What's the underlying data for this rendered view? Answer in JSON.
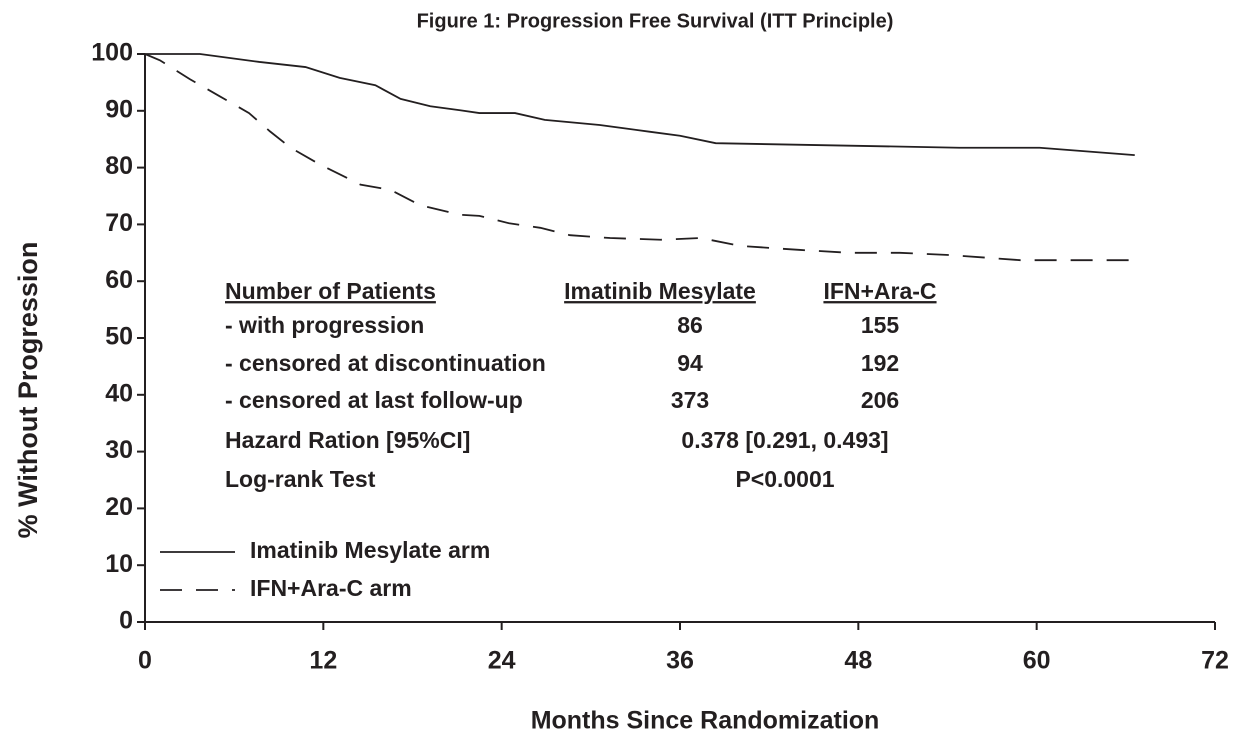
{
  "chart_data": {
    "type": "line",
    "title": "Figure 1: Progression Free Survival (ITT Principle)",
    "xlabel": "Months Since Randomization",
    "ylabel": "% Without Progression",
    "xlim": [
      0,
      72
    ],
    "xticks": [
      0,
      12,
      24,
      36,
      48,
      60,
      72
    ],
    "ylim": [
      0,
      100
    ],
    "yticks": [
      0,
      10,
      20,
      30,
      40,
      50,
      60,
      70,
      80,
      90,
      100
    ],
    "grid": false,
    "legend": "lower left",
    "series": [
      {
        "name": "Imatinib Mesylate arm",
        "color": "#231f20",
        "linestyle": "solid",
        "x": [
          0,
          3.7,
          7.7,
          10.8,
          13.1,
          15.5,
          17.2,
          19.2,
          21.2,
          22.5,
          24.9,
          26.9,
          30.6,
          34,
          36,
          38.4,
          54.8,
          60.2,
          66.6
        ],
        "values": [
          100,
          100,
          98.6,
          97.7,
          95.8,
          94.5,
          92.1,
          90.8,
          90.1,
          89.6,
          89.6,
          88.4,
          87.5,
          86.3,
          85.6,
          84.3,
          83.5,
          83.5,
          82.2
        ]
      },
      {
        "name": "IFN+Ara-C arm",
        "color": "#231f20",
        "linestyle": "dashed",
        "x": [
          0,
          1.0,
          3.0,
          5.0,
          7.0,
          8.4,
          9.8,
          11.8,
          14.5,
          16.5,
          18.5,
          21.2,
          22.5,
          24.5,
          26.6,
          28.6,
          31.3,
          34.7,
          37.4,
          40.1,
          44.1,
          47.4,
          50.8,
          54.2,
          58.9,
          66.6
        ],
        "values": [
          100,
          98.9,
          95.6,
          92.6,
          89.6,
          86.4,
          83.5,
          80.5,
          77.0,
          76.1,
          73.4,
          71.7,
          71.5,
          70.2,
          69.4,
          68.1,
          67.6,
          67.3,
          67.6,
          66.2,
          65.5,
          65.0,
          65.0,
          64.6,
          63.7,
          63.7
        ]
      }
    ],
    "table": {
      "header": [
        "Number of Patients",
        "Imatinib Mesylate",
        "IFN+Ara-C"
      ],
      "rows": [
        [
          "- with progression",
          "86",
          "155"
        ],
        [
          "- censored at discontinuation",
          "94",
          "192"
        ],
        [
          "- censored at last follow-up",
          "373",
          "206"
        ],
        [
          "Hazard Ration [95%CI]",
          "0.378 [0.291, 0.493]"
        ],
        [
          "Log-rank Test",
          "P<0.0001"
        ]
      ]
    }
  }
}
